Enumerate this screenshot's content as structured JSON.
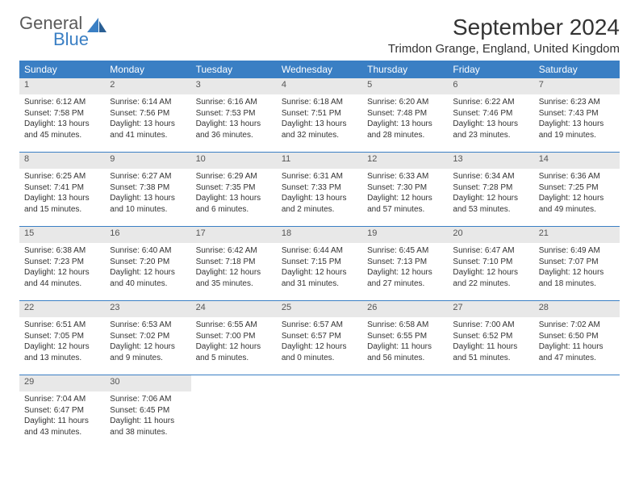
{
  "logo": {
    "word1": "General",
    "word2": "Blue"
  },
  "title": "September 2024",
  "location": "Trimdon Grange, England, United Kingdom",
  "header_bg": "#3a7fc4",
  "header_text": "#ffffff",
  "daynum_bg": "#e8e8e8",
  "border_color": "#3a7fc4",
  "weekdays": [
    "Sunday",
    "Monday",
    "Tuesday",
    "Wednesday",
    "Thursday",
    "Friday",
    "Saturday"
  ],
  "weeks": [
    [
      {
        "n": "1",
        "sr": "Sunrise: 6:12 AM",
        "ss": "Sunset: 7:58 PM",
        "d1": "Daylight: 13 hours",
        "d2": "and 45 minutes."
      },
      {
        "n": "2",
        "sr": "Sunrise: 6:14 AM",
        "ss": "Sunset: 7:56 PM",
        "d1": "Daylight: 13 hours",
        "d2": "and 41 minutes."
      },
      {
        "n": "3",
        "sr": "Sunrise: 6:16 AM",
        "ss": "Sunset: 7:53 PM",
        "d1": "Daylight: 13 hours",
        "d2": "and 36 minutes."
      },
      {
        "n": "4",
        "sr": "Sunrise: 6:18 AM",
        "ss": "Sunset: 7:51 PM",
        "d1": "Daylight: 13 hours",
        "d2": "and 32 minutes."
      },
      {
        "n": "5",
        "sr": "Sunrise: 6:20 AM",
        "ss": "Sunset: 7:48 PM",
        "d1": "Daylight: 13 hours",
        "d2": "and 28 minutes."
      },
      {
        "n": "6",
        "sr": "Sunrise: 6:22 AM",
        "ss": "Sunset: 7:46 PM",
        "d1": "Daylight: 13 hours",
        "d2": "and 23 minutes."
      },
      {
        "n": "7",
        "sr": "Sunrise: 6:23 AM",
        "ss": "Sunset: 7:43 PM",
        "d1": "Daylight: 13 hours",
        "d2": "and 19 minutes."
      }
    ],
    [
      {
        "n": "8",
        "sr": "Sunrise: 6:25 AM",
        "ss": "Sunset: 7:41 PM",
        "d1": "Daylight: 13 hours",
        "d2": "and 15 minutes."
      },
      {
        "n": "9",
        "sr": "Sunrise: 6:27 AM",
        "ss": "Sunset: 7:38 PM",
        "d1": "Daylight: 13 hours",
        "d2": "and 10 minutes."
      },
      {
        "n": "10",
        "sr": "Sunrise: 6:29 AM",
        "ss": "Sunset: 7:35 PM",
        "d1": "Daylight: 13 hours",
        "d2": "and 6 minutes."
      },
      {
        "n": "11",
        "sr": "Sunrise: 6:31 AM",
        "ss": "Sunset: 7:33 PM",
        "d1": "Daylight: 13 hours",
        "d2": "and 2 minutes."
      },
      {
        "n": "12",
        "sr": "Sunrise: 6:33 AM",
        "ss": "Sunset: 7:30 PM",
        "d1": "Daylight: 12 hours",
        "d2": "and 57 minutes."
      },
      {
        "n": "13",
        "sr": "Sunrise: 6:34 AM",
        "ss": "Sunset: 7:28 PM",
        "d1": "Daylight: 12 hours",
        "d2": "and 53 minutes."
      },
      {
        "n": "14",
        "sr": "Sunrise: 6:36 AM",
        "ss": "Sunset: 7:25 PM",
        "d1": "Daylight: 12 hours",
        "d2": "and 49 minutes."
      }
    ],
    [
      {
        "n": "15",
        "sr": "Sunrise: 6:38 AM",
        "ss": "Sunset: 7:23 PM",
        "d1": "Daylight: 12 hours",
        "d2": "and 44 minutes."
      },
      {
        "n": "16",
        "sr": "Sunrise: 6:40 AM",
        "ss": "Sunset: 7:20 PM",
        "d1": "Daylight: 12 hours",
        "d2": "and 40 minutes."
      },
      {
        "n": "17",
        "sr": "Sunrise: 6:42 AM",
        "ss": "Sunset: 7:18 PM",
        "d1": "Daylight: 12 hours",
        "d2": "and 35 minutes."
      },
      {
        "n": "18",
        "sr": "Sunrise: 6:44 AM",
        "ss": "Sunset: 7:15 PM",
        "d1": "Daylight: 12 hours",
        "d2": "and 31 minutes."
      },
      {
        "n": "19",
        "sr": "Sunrise: 6:45 AM",
        "ss": "Sunset: 7:13 PM",
        "d1": "Daylight: 12 hours",
        "d2": "and 27 minutes."
      },
      {
        "n": "20",
        "sr": "Sunrise: 6:47 AM",
        "ss": "Sunset: 7:10 PM",
        "d1": "Daylight: 12 hours",
        "d2": "and 22 minutes."
      },
      {
        "n": "21",
        "sr": "Sunrise: 6:49 AM",
        "ss": "Sunset: 7:07 PM",
        "d1": "Daylight: 12 hours",
        "d2": "and 18 minutes."
      }
    ],
    [
      {
        "n": "22",
        "sr": "Sunrise: 6:51 AM",
        "ss": "Sunset: 7:05 PM",
        "d1": "Daylight: 12 hours",
        "d2": "and 13 minutes."
      },
      {
        "n": "23",
        "sr": "Sunrise: 6:53 AM",
        "ss": "Sunset: 7:02 PM",
        "d1": "Daylight: 12 hours",
        "d2": "and 9 minutes."
      },
      {
        "n": "24",
        "sr": "Sunrise: 6:55 AM",
        "ss": "Sunset: 7:00 PM",
        "d1": "Daylight: 12 hours",
        "d2": "and 5 minutes."
      },
      {
        "n": "25",
        "sr": "Sunrise: 6:57 AM",
        "ss": "Sunset: 6:57 PM",
        "d1": "Daylight: 12 hours",
        "d2": "and 0 minutes."
      },
      {
        "n": "26",
        "sr": "Sunrise: 6:58 AM",
        "ss": "Sunset: 6:55 PM",
        "d1": "Daylight: 11 hours",
        "d2": "and 56 minutes."
      },
      {
        "n": "27",
        "sr": "Sunrise: 7:00 AM",
        "ss": "Sunset: 6:52 PM",
        "d1": "Daylight: 11 hours",
        "d2": "and 51 minutes."
      },
      {
        "n": "28",
        "sr": "Sunrise: 7:02 AM",
        "ss": "Sunset: 6:50 PM",
        "d1": "Daylight: 11 hours",
        "d2": "and 47 minutes."
      }
    ],
    [
      {
        "n": "29",
        "sr": "Sunrise: 7:04 AM",
        "ss": "Sunset: 6:47 PM",
        "d1": "Daylight: 11 hours",
        "d2": "and 43 minutes."
      },
      {
        "n": "30",
        "sr": "Sunrise: 7:06 AM",
        "ss": "Sunset: 6:45 PM",
        "d1": "Daylight: 11 hours",
        "d2": "and 38 minutes."
      },
      null,
      null,
      null,
      null,
      null
    ]
  ]
}
